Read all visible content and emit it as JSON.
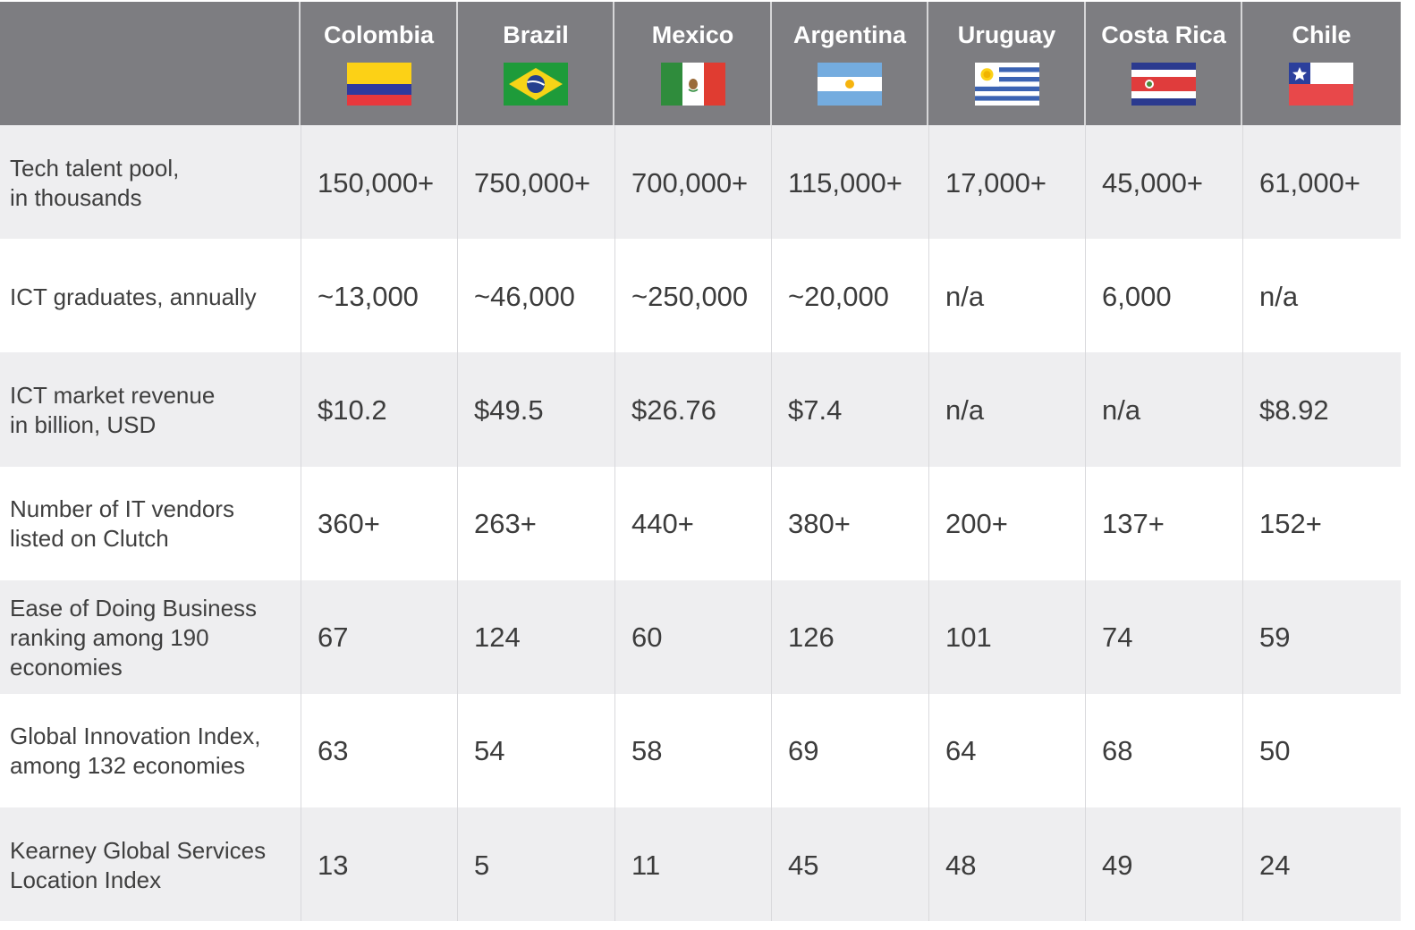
{
  "columns": [
    {
      "name": "Colombia",
      "flag": "colombia-flag"
    },
    {
      "name": "Brazil",
      "flag": "brazil-flag"
    },
    {
      "name": "Mexico",
      "flag": "mexico-flag"
    },
    {
      "name": "Argentina",
      "flag": "argentina-flag"
    },
    {
      "name": "Uruguay",
      "flag": "uruguay-flag"
    },
    {
      "name": "Costa Rica",
      "flag": "costa-rica-flag"
    },
    {
      "name": "Chile",
      "flag": "chile-flag"
    }
  ],
  "rows": [
    {
      "label": "Tech talent pool,\nin thousands",
      "values": [
        "150,000+",
        "750,000+",
        "700,000+",
        "115,000+",
        "17,000+",
        "45,000+",
        "61,000+"
      ]
    },
    {
      "label": "ICT graduates, annually",
      "values": [
        "~13,000",
        "~46,000",
        "~250,000",
        "~20,000",
        "n/a",
        "6,000",
        "n/a"
      ]
    },
    {
      "label": "ICT market revenue\nin billion, USD",
      "values": [
        "$10.2",
        "$49.5",
        "$26.76",
        "$7.4",
        "n/a",
        "n/a",
        "$8.92"
      ]
    },
    {
      "label": "Number of IT vendors\nlisted on Clutch",
      "values": [
        "360+",
        "263+",
        "440+",
        "380+",
        "200+",
        "137+",
        "152+"
      ]
    },
    {
      "label": "Ease of Doing Business\nranking among  190\neconomies",
      "values": [
        "67",
        "124",
        "60",
        "126",
        "101",
        "74",
        "59"
      ]
    },
    {
      "label": "Global Innovation  Index,\namong 132 economies",
      "values": [
        "63",
        "54",
        "58",
        "69",
        "64",
        "68",
        "50"
      ]
    },
    {
      "label": "Kearney Global Services\nLocation Index",
      "values": [
        "13",
        "5",
        "11",
        "45",
        "48",
        "49",
        "24"
      ]
    }
  ],
  "colors": {
    "header_bg": "#7d7d81",
    "row_shaded": "#eeeef0",
    "row_plain": "#ffffff",
    "text": "#3c3c3c"
  }
}
